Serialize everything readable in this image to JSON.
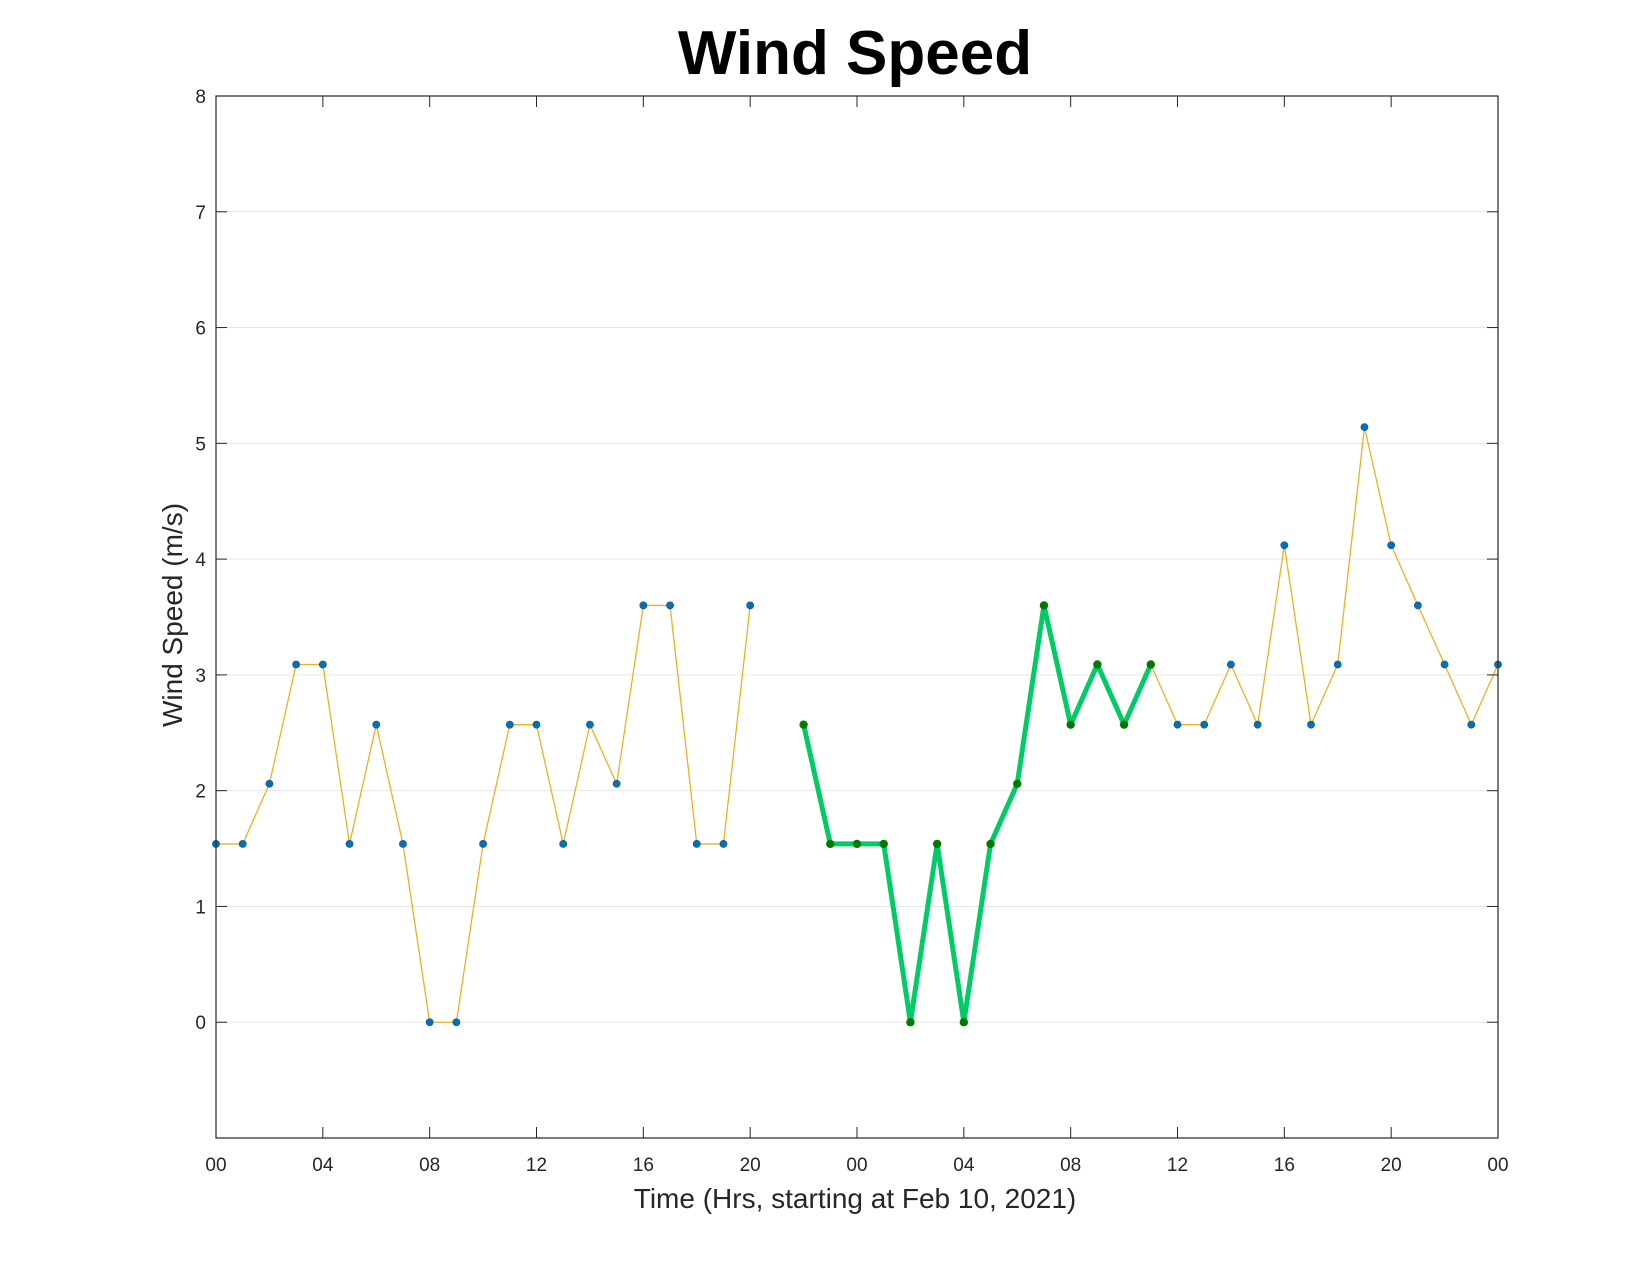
{
  "chart_data": {
    "type": "line",
    "title": "Wind Speed",
    "xlabel": "Time (Hrs, starting at Feb 10, 2021)",
    "ylabel": "Wind Speed (m/s)",
    "ylim": [
      -1,
      8
    ],
    "xlim": [
      0,
      48
    ],
    "yticks": [
      0,
      1,
      2,
      3,
      4,
      5,
      6,
      7,
      8
    ],
    "xticks": [
      0,
      4,
      8,
      12,
      16,
      20,
      24,
      28,
      32,
      36,
      40,
      44,
      48
    ],
    "xticklabels": [
      "00",
      "04",
      "08",
      "12",
      "16",
      "20",
      "00",
      "04",
      "08",
      "12",
      "16",
      "20",
      "00"
    ],
    "grid": "horizontal",
    "colors": {
      "series_line": "#EDB120",
      "marker": "#0072BD",
      "highlight_line": "#00CC66",
      "highlight_marker": "#007A00",
      "grid": "#E6E6E6",
      "axis": "#262626"
    },
    "series": [
      {
        "style": "line-markers",
        "segments": [
          {
            "x": [
              0,
              1,
              2,
              3,
              4,
              5,
              6,
              7,
              8,
              9,
              10,
              11,
              12,
              13,
              14,
              15,
              16,
              17,
              18,
              19,
              20
            ],
            "y": [
              1.54,
              1.54,
              2.06,
              3.09,
              3.09,
              1.54,
              2.57,
              1.54,
              0,
              0,
              1.54,
              2.57,
              2.57,
              1.54,
              2.57,
              2.06,
              3.6,
              3.6,
              1.54,
              1.54,
              3.6
            ]
          },
          {
            "x": [
              22,
              23,
              24,
              25,
              26,
              27,
              28,
              29,
              30,
              31,
              32,
              33,
              34,
              35,
              36,
              37,
              38,
              39,
              40,
              41,
              42,
              43,
              44,
              45,
              46,
              47,
              48
            ],
            "y": [
              2.57,
              1.54,
              1.54,
              1.54,
              0,
              1.54,
              0,
              1.54,
              2.06,
              3.6,
              2.57,
              3.09,
              2.57,
              3.09,
              2.57,
              2.57,
              3.09,
              2.57,
              4.12,
              2.57,
              3.09,
              5.14,
              4.12,
              3.6,
              3.09,
              2.57,
              3.09
            ]
          }
        ]
      },
      {
        "style": "highlight",
        "x": [
          22,
          23,
          24,
          25,
          26,
          27,
          28,
          29,
          30,
          31,
          32,
          33,
          34,
          35
        ],
        "y": [
          2.57,
          1.54,
          1.54,
          1.54,
          0,
          1.54,
          0,
          1.54,
          2.06,
          3.6,
          2.57,
          3.09,
          2.57,
          3.09
        ]
      }
    ]
  }
}
